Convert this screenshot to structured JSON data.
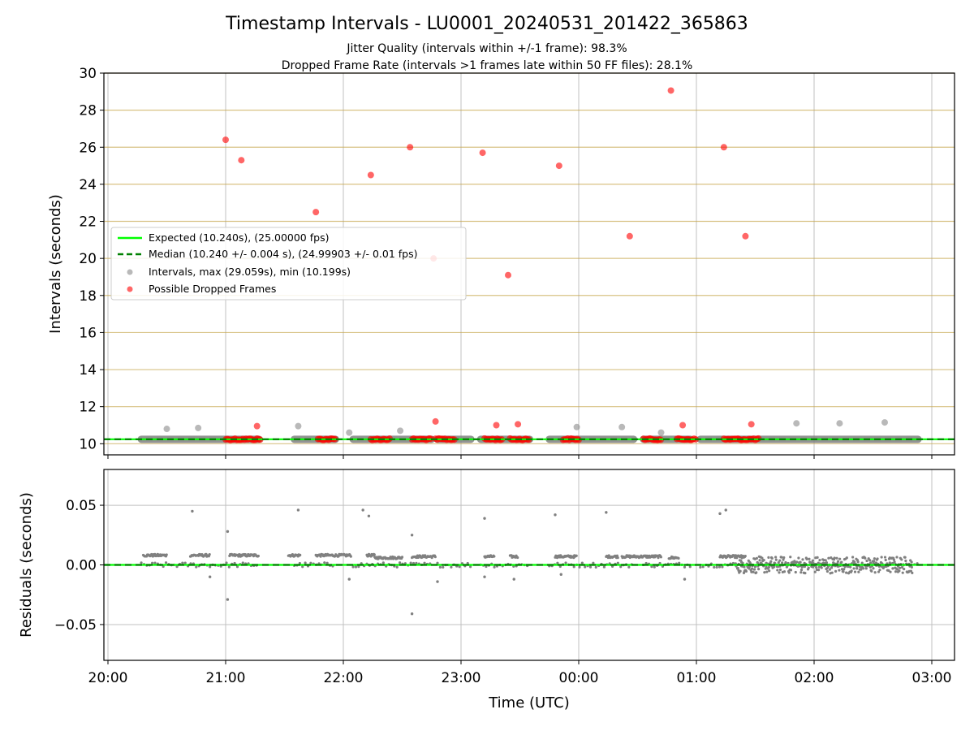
{
  "figure": {
    "title": "Timestamp Intervals - LU0001_20240531_201422_365863",
    "subtitle_1": "Jitter Quality (intervals within +/-1 frame): 98.3%",
    "subtitle_2": "Dropped Frame Rate (intervals >1 frames late within 50 FF files): 28.1%"
  },
  "colors": {
    "expected": "#00ff00",
    "median": "#008000",
    "intervals": "#808080",
    "dropped": "#ff0000",
    "hgrid_top": "#c8a850",
    "grid": "#c0c0c0"
  },
  "chart_data": [
    {
      "type": "scatter",
      "panel": "intervals",
      "ylabel": "Intervals (seconds)",
      "xlabel": "",
      "xlim": [
        "20:00",
        "03:00"
      ],
      "ylim": [
        9.4,
        30
      ],
      "yticks": [
        "10",
        "12",
        "14",
        "16",
        "18",
        "20",
        "22",
        "24",
        "26",
        "28",
        "30"
      ],
      "grid": true,
      "legend_position": "center-left",
      "legend": [
        "Expected (10.240s), (25.00000 fps)",
        "Median (10.240 +/- 0.004 s), (24.99903 +/- 0.01 fps)",
        "Intervals, max (29.059s), min (10.199s)",
        "Possible Dropped Frames"
      ],
      "lines": [
        {
          "name": "Expected",
          "y": 10.24,
          "style": "solid"
        },
        {
          "name": "Median",
          "y": 10.24,
          "style": "dashed"
        }
      ],
      "series": [
        {
          "name": "Intervals",
          "points": [
            [
              "20:30",
              10.8
            ],
            [
              "20:46",
              10.85
            ],
            [
              "21:37",
              10.95
            ],
            [
              "22:03",
              10.6
            ],
            [
              "22:29",
              10.7
            ],
            [
              "23:59",
              10.9
            ],
            [
              "00:22",
              10.9
            ],
            [
              "00:42",
              10.6
            ],
            [
              "01:51",
              11.1
            ],
            [
              "02:13",
              11.1
            ],
            [
              "02:36",
              11.15
            ]
          ],
          "baseline_segments": [
            [
              "20:17",
              "21:17"
            ],
            [
              "21:35",
              "21:56"
            ],
            [
              "22:05",
              "22:45"
            ],
            [
              "22:48",
              "23:05"
            ],
            [
              "23:10",
              "23:35"
            ],
            [
              "23:45",
              "00:28"
            ],
            [
              "00:33",
              "00:57"
            ],
            [
              "01:02",
              "02:53"
            ]
          ]
        },
        {
          "name": "Possible Dropped Frames",
          "points": [
            [
              "21:00",
              26.4
            ],
            [
              "21:08",
              25.3
            ],
            [
              "21:16",
              10.95
            ],
            [
              "21:46",
              22.5
            ],
            [
              "22:14",
              24.5
            ],
            [
              "22:34",
              26.0
            ],
            [
              "22:46",
              20.0
            ],
            [
              "22:47",
              11.2
            ],
            [
              "23:11",
              25.7
            ],
            [
              "23:18",
              11.0
            ],
            [
              "23:24",
              19.1
            ],
            [
              "23:29",
              11.05
            ],
            [
              "23:50",
              25.0
            ],
            [
              "00:26",
              21.2
            ],
            [
              "00:47",
              29.06
            ],
            [
              "00:53",
              11.0
            ],
            [
              "01:14",
              26.0
            ],
            [
              "01:25",
              21.2
            ],
            [
              "01:28",
              11.05
            ]
          ],
          "baseline_clusters": [
            [
              "21:00",
              "21:18"
            ],
            [
              "21:47",
              "21:56"
            ],
            [
              "22:14",
              "22:24"
            ],
            [
              "22:35",
              "22:45"
            ],
            [
              "22:47",
              "22:57"
            ],
            [
              "23:12",
              "23:21"
            ],
            [
              "23:25",
              "23:35"
            ],
            [
              "23:52",
              "24:00"
            ],
            [
              "00:33",
              "00:42"
            ],
            [
              "00:50",
              "01:00"
            ],
            [
              "01:14",
              "01:32"
            ]
          ]
        }
      ]
    },
    {
      "type": "scatter",
      "panel": "residuals",
      "xlabel": "Time (UTC)",
      "ylabel": "Residuals (seconds)",
      "xlim": [
        "20:00",
        "03:00"
      ],
      "ylim": [
        -0.08,
        0.08
      ],
      "xticks": [
        "20:00",
        "21:00",
        "22:00",
        "23:00",
        "00:00",
        "01:00",
        "02:00",
        "03:00"
      ],
      "yticks": [
        "0.05",
        "0.00",
        "−0.05"
      ],
      "grid": true,
      "lines": [
        {
          "name": "Expected",
          "y": 0.0,
          "style": "solid"
        },
        {
          "name": "Median",
          "y": 0.0,
          "style": "dashed"
        }
      ],
      "series": [
        {
          "name": "Residuals",
          "points": [
            [
              "20:43",
              0.045
            ],
            [
              "21:01",
              0.028
            ],
            [
              "21:01",
              -0.029
            ],
            [
              "21:37",
              0.046
            ],
            [
              "22:10",
              0.046
            ],
            [
              "22:13",
              0.041
            ],
            [
              "22:35",
              0.025
            ],
            [
              "22:35",
              -0.041
            ],
            [
              "23:12",
              0.039
            ],
            [
              "23:48",
              0.042
            ],
            [
              "00:14",
              0.044
            ],
            [
              "01:12",
              0.043
            ],
            [
              "01:15",
              0.046
            ],
            [
              "20:52",
              -0.01
            ],
            [
              "22:03",
              -0.012
            ],
            [
              "22:48",
              -0.014
            ],
            [
              "23:51",
              -0.008
            ],
            [
              "00:54",
              -0.012
            ],
            [
              "23:12",
              -0.01
            ],
            [
              "23:27",
              -0.012
            ]
          ],
          "bands": [
            {
              "from": "20:18",
              "to": "20:30",
              "level": 0.008
            },
            {
              "from": "20:42",
              "to": "20:52",
              "level": 0.008
            },
            {
              "from": "21:02",
              "to": "21:17",
              "level": 0.008
            },
            {
              "from": "21:32",
              "to": "21:38",
              "level": 0.008
            },
            {
              "from": "21:46",
              "to": "22:04",
              "level": 0.008
            },
            {
              "from": "22:12",
              "to": "22:16",
              "level": 0.008
            },
            {
              "from": "22:16",
              "to": "22:30",
              "level": 0.006
            },
            {
              "from": "22:35",
              "to": "22:47",
              "level": 0.007
            },
            {
              "from": "23:12",
              "to": "23:17",
              "level": 0.007
            },
            {
              "from": "23:25",
              "to": "23:29",
              "level": 0.007
            },
            {
              "from": "23:48",
              "to": "23:59",
              "level": 0.007
            },
            {
              "from": "00:14",
              "to": "00:20",
              "level": 0.007
            },
            {
              "from": "00:22",
              "to": "00:42",
              "level": 0.007
            },
            {
              "from": "00:46",
              "to": "00:51",
              "level": 0.006
            },
            {
              "from": "01:12",
              "to": "01:25",
              "level": 0.007
            }
          ],
          "noise_region": [
            "01:20",
            "02:50"
          ]
        }
      ]
    }
  ]
}
